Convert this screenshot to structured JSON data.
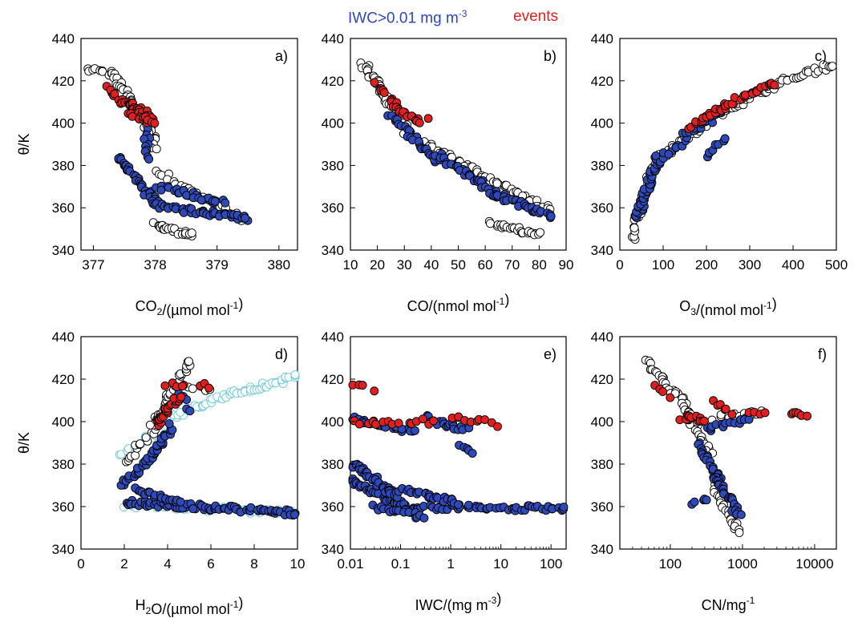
{
  "legend": {
    "iwc_label": "IWC>0.01 mg m",
    "iwc_sup": "-3",
    "events_label": "events"
  },
  "colors": {
    "iwc": "#2e49b8",
    "events": "#e02020",
    "background_points": "#ffffff",
    "cyan": "#6cc8d8",
    "outline": "#000000"
  },
  "chart_data": [
    {
      "type": "scatter",
      "panel": "a)",
      "xlabel": "CO2/(µmol mol-1)",
      "ylabel": "θ/K",
      "xscale": "linear",
      "xlim": [
        376.8,
        380.3
      ],
      "ylim": [
        340,
        440
      ],
      "xticks": [
        377,
        378,
        379,
        380
      ],
      "yticks": [
        340,
        360,
        380,
        400,
        420,
        440
      ],
      "series": [
        {
          "marker": "open",
          "segments": [
            [
              376.9,
              426,
              377.3,
              423,
              10
            ],
            [
              377.3,
              424,
              377.95,
              395,
              45
            ],
            [
              377.9,
              400,
              378.0,
              388,
              12
            ],
            [
              378.0,
              352,
              378.6,
              347,
              25
            ],
            [
              378.0,
              378,
              379.45,
              354,
              25
            ]
          ]
        },
        {
          "marker": "iwc",
          "segments": [
            [
              377.4,
              384,
              377.75,
              372,
              18
            ],
            [
              377.7,
              372,
              378.1,
              360,
              25
            ],
            [
              378.05,
              370,
              379.1,
              362,
              25
            ],
            [
              378.2,
              360,
              379.5,
              355,
              35
            ],
            [
              377.85,
              397,
              377.9,
              383,
              10
            ]
          ]
        },
        {
          "marker": "event",
          "segments": [
            [
              377.2,
              417,
              377.5,
              409,
              10
            ],
            [
              377.5,
              411,
              377.95,
              402,
              25
            ],
            [
              377.6,
              405,
              378.0,
              400,
              12
            ]
          ]
        }
      ]
    },
    {
      "type": "scatter",
      "panel": "b)",
      "xlabel": "CO/(nmol mol-1)",
      "ylabel": "",
      "xscale": "linear",
      "xlim": [
        10,
        90
      ],
      "ylim": [
        340,
        440
      ],
      "xticks": [
        10,
        20,
        30,
        40,
        50,
        60,
        70,
        80,
        90
      ],
      "yticks": [
        340,
        360,
        380,
        400,
        420,
        440
      ],
      "series": [
        {
          "marker": "open",
          "segments": [
            [
              15,
              428,
              32,
              395,
              50
            ],
            [
              30,
              396,
              85,
              358,
              60
            ],
            [
              62,
              353,
              80,
              347,
              25
            ]
          ]
        },
        {
          "marker": "iwc",
          "segments": [
            [
              25,
              404,
              42,
              382,
              25
            ],
            [
              42,
              385,
              65,
              366,
              35
            ],
            [
              62,
              367,
              85,
              356,
              35
            ]
          ]
        },
        {
          "marker": "event",
          "segments": [
            [
              20,
              418,
              26,
              410,
              8
            ],
            [
              26,
              409,
              36,
              400,
              18
            ],
            [
              38,
              401,
              39,
              401,
              1
            ]
          ]
        }
      ]
    },
    {
      "type": "scatter",
      "panel": "c)",
      "xlabel": "O3/(nmol mol-1)",
      "ylabel": "",
      "xscale": "linear",
      "xlim": [
        0,
        500
      ],
      "ylim": [
        340,
        440
      ],
      "xticks": [
        0,
        100,
        200,
        300,
        400,
        500
      ],
      "yticks": [
        340,
        360,
        380,
        400,
        420,
        440
      ],
      "series": [
        {
          "marker": "open",
          "segments": [
            [
              30,
              345,
              80,
              384,
              30
            ],
            [
              80,
              382,
              200,
              400,
              30
            ],
            [
              200,
              402,
              380,
              420,
              40
            ],
            [
              380,
              420,
              495,
              428,
              20
            ]
          ]
        },
        {
          "marker": "iwc",
          "segments": [
            [
              40,
              355,
              90,
              384,
              40
            ],
            [
              90,
              382,
              150,
              392,
              12
            ],
            [
              150,
              394,
              240,
              406,
              20
            ],
            [
              200,
              385,
              240,
              392,
              8
            ]
          ]
        },
        {
          "marker": "event",
          "segments": [
            [
              160,
              398,
              240,
              408,
              15
            ],
            [
              240,
              408,
              360,
              419,
              20
            ]
          ]
        }
      ]
    },
    {
      "type": "scatter",
      "panel": "d)",
      "xlabel": "H2O/(µmol mol-1)",
      "ylabel": "θ/K",
      "xscale": "linear",
      "xlim": [
        0,
        10
      ],
      "ylim": [
        340,
        440
      ],
      "xticks": [
        0,
        2,
        4,
        6,
        8,
        10
      ],
      "yticks": [
        340,
        360,
        380,
        400,
        420,
        440
      ],
      "series": [
        {
          "marker": "cyan",
          "segments": [
            [
              1.7,
              385,
              4,
              398,
              15
            ],
            [
              4,
              402,
              7,
              413,
              30
            ],
            [
              7,
              413,
              10,
              421,
              30
            ],
            [
              2,
              361,
              10,
              357,
              40
            ]
          ]
        },
        {
          "marker": "open",
          "segments": [
            [
              2,
              380,
              3.5,
              398,
              15
            ],
            [
              3.3,
              398,
              5,
              428,
              40
            ],
            [
              5,
              417,
              6,
              415,
              6
            ]
          ]
        },
        {
          "marker": "iwc",
          "segments": [
            [
              1.9,
              370,
              3.2,
              382,
              20
            ],
            [
              3.0,
              380,
              4.2,
              398,
              25
            ],
            [
              2,
              362,
              10,
              357,
              80
            ],
            [
              2.5,
              368,
              4.5,
              362,
              20
            ],
            [
              4.5,
              414,
              5,
              405,
              5
            ]
          ]
        },
        {
          "marker": "event",
          "segments": [
            [
              3.5,
              399,
              4.5,
              412,
              25
            ],
            [
              4,
              418,
              4.8,
              416,
              5
            ],
            [
              5.5,
              417,
              6,
              417,
              3
            ]
          ]
        }
      ]
    },
    {
      "type": "scatter",
      "panel": "e)",
      "xlabel": "IWC/(mg m-3)",
      "ylabel": "",
      "xscale": "log",
      "xlim": [
        0.01,
        200
      ],
      "ylim": [
        340,
        440
      ],
      "xticks": [
        0.01,
        0.1,
        1,
        10,
        100
      ],
      "xticklabels": [
        "0.01",
        "0.1",
        "1",
        "10",
        "100"
      ],
      "yticks": [
        340,
        360,
        380,
        400,
        420,
        440
      ],
      "series": [
        {
          "marker": "iwc",
          "segments": [
            [
              0.01,
              372,
              0.12,
              360,
              50
            ],
            [
              0.012,
              380,
              0.08,
              365,
              40
            ],
            [
              0.1,
              360,
              200,
              359,
              60
            ],
            [
              0.1,
              368,
              1.5,
              362,
              25
            ],
            [
              0.01,
              402,
              0.2,
              395,
              25
            ],
            [
              0.3,
              402,
              2,
              396,
              20
            ],
            [
              1.5,
              389,
              3,
              385,
              6
            ],
            [
              0.03,
              360,
              0.3,
              355,
              20
            ]
          ]
        },
        {
          "marker": "event",
          "segments": [
            [
              0.01,
              418,
              0.015,
              417,
              2
            ],
            [
              0.02,
              416,
              0.03,
              415,
              2
            ],
            [
              0.012,
              400,
              0.5,
              400,
              15
            ],
            [
              1,
              402,
              8,
              399,
              10
            ]
          ]
        }
      ]
    },
    {
      "type": "scatter",
      "panel": "f)",
      "xlabel": "CN/mg-1",
      "ylabel": "",
      "xscale": "log",
      "xlim": [
        20,
        20000
      ],
      "ylim": [
        340,
        440
      ],
      "xticks": [
        100,
        1000,
        10000
      ],
      "xticklabels": [
        "100",
        "1000",
        "10000"
      ],
      "yticks": [
        340,
        360,
        380,
        400,
        420,
        440
      ],
      "series": [
        {
          "marker": "open",
          "segments": [
            [
              45,
              428,
              150,
              410,
              25
            ],
            [
              150,
              410,
              350,
              385,
              30
            ],
            [
              400,
              370,
              900,
              348,
              25
            ],
            [
              200,
              400,
              2000,
              405,
              15
            ]
          ]
        },
        {
          "marker": "iwc",
          "segments": [
            [
              250,
              390,
              500,
              372,
              20
            ],
            [
              400,
              375,
              900,
              356,
              30
            ],
            [
              300,
              396,
              1300,
              402,
              15
            ],
            [
              200,
              360,
              350,
              364,
              5
            ]
          ]
        },
        {
          "marker": "event",
          "segments": [
            [
              60,
              418,
              100,
              412,
              4
            ],
            [
              150,
              402,
              300,
              401,
              15
            ],
            [
              400,
              410,
              700,
              404,
              6
            ],
            [
              1200,
              405,
              2000,
              404,
              4
            ],
            [
              4500,
              404,
              7500,
              402,
              6
            ]
          ]
        }
      ]
    }
  ]
}
